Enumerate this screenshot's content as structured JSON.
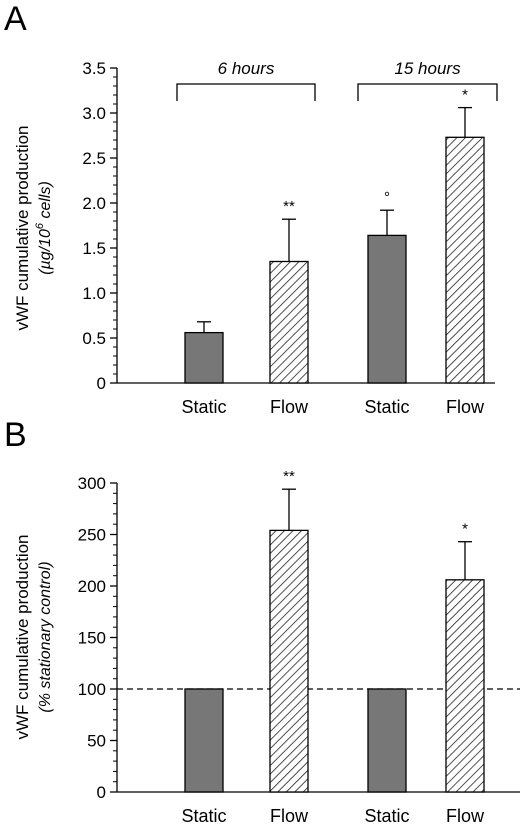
{
  "chart_data": [
    {
      "type": "bar",
      "panel_label": "A",
      "ylabel_line1": "vWF cumulative production",
      "ylabel_line2_pre": "(µg/10",
      "ylabel_line2_sup": "6",
      "ylabel_line2_post": " cells)",
      "ylim": [
        0,
        3.5
      ],
      "yticks": [
        "0",
        "0.5",
        "1.0",
        "1.5",
        "2.0",
        "2.5",
        "3.0",
        "3.5"
      ],
      "ytick_values": [
        0,
        0.5,
        1.0,
        1.5,
        2.0,
        2.5,
        3.0,
        3.5
      ],
      "categories": [
        "Static",
        "Flow",
        "Static",
        "Flow"
      ],
      "values": [
        0.56,
        1.35,
        1.64,
        2.73
      ],
      "errors": [
        0.12,
        0.47,
        0.28,
        0.33
      ],
      "annotations": [
        "",
        "**",
        "°",
        "*"
      ],
      "groups": [
        {
          "label": "6 hours",
          "bars": [
            0,
            1
          ]
        },
        {
          "label": "15 hours",
          "bars": [
            2,
            3
          ]
        }
      ],
      "bar_styles": [
        "solid",
        "hatched",
        "solid",
        "hatched"
      ],
      "colors": {
        "solid": "#777777",
        "hatch": "#333333"
      }
    },
    {
      "type": "bar",
      "panel_label": "B",
      "ylabel_line1": "vWF cumulative production",
      "ylabel_line2": "(% stationary control)",
      "ylim": [
        0,
        300
      ],
      "yticks": [
        "0",
        "50",
        "100",
        "150",
        "200",
        "250",
        "300"
      ],
      "ytick_values": [
        0,
        50,
        100,
        150,
        200,
        250,
        300
      ],
      "categories": [
        "Static",
        "Flow",
        "Static",
        "Flow"
      ],
      "values": [
        100,
        254,
        100,
        206
      ],
      "errors": [
        0,
        40,
        0,
        37
      ],
      "annotations": [
        "",
        "**",
        "",
        "*"
      ],
      "reference_line": 100,
      "bar_styles": [
        "solid",
        "hatched",
        "solid",
        "hatched"
      ],
      "colors": {
        "solid": "#777777",
        "hatch": "#333333"
      }
    }
  ]
}
